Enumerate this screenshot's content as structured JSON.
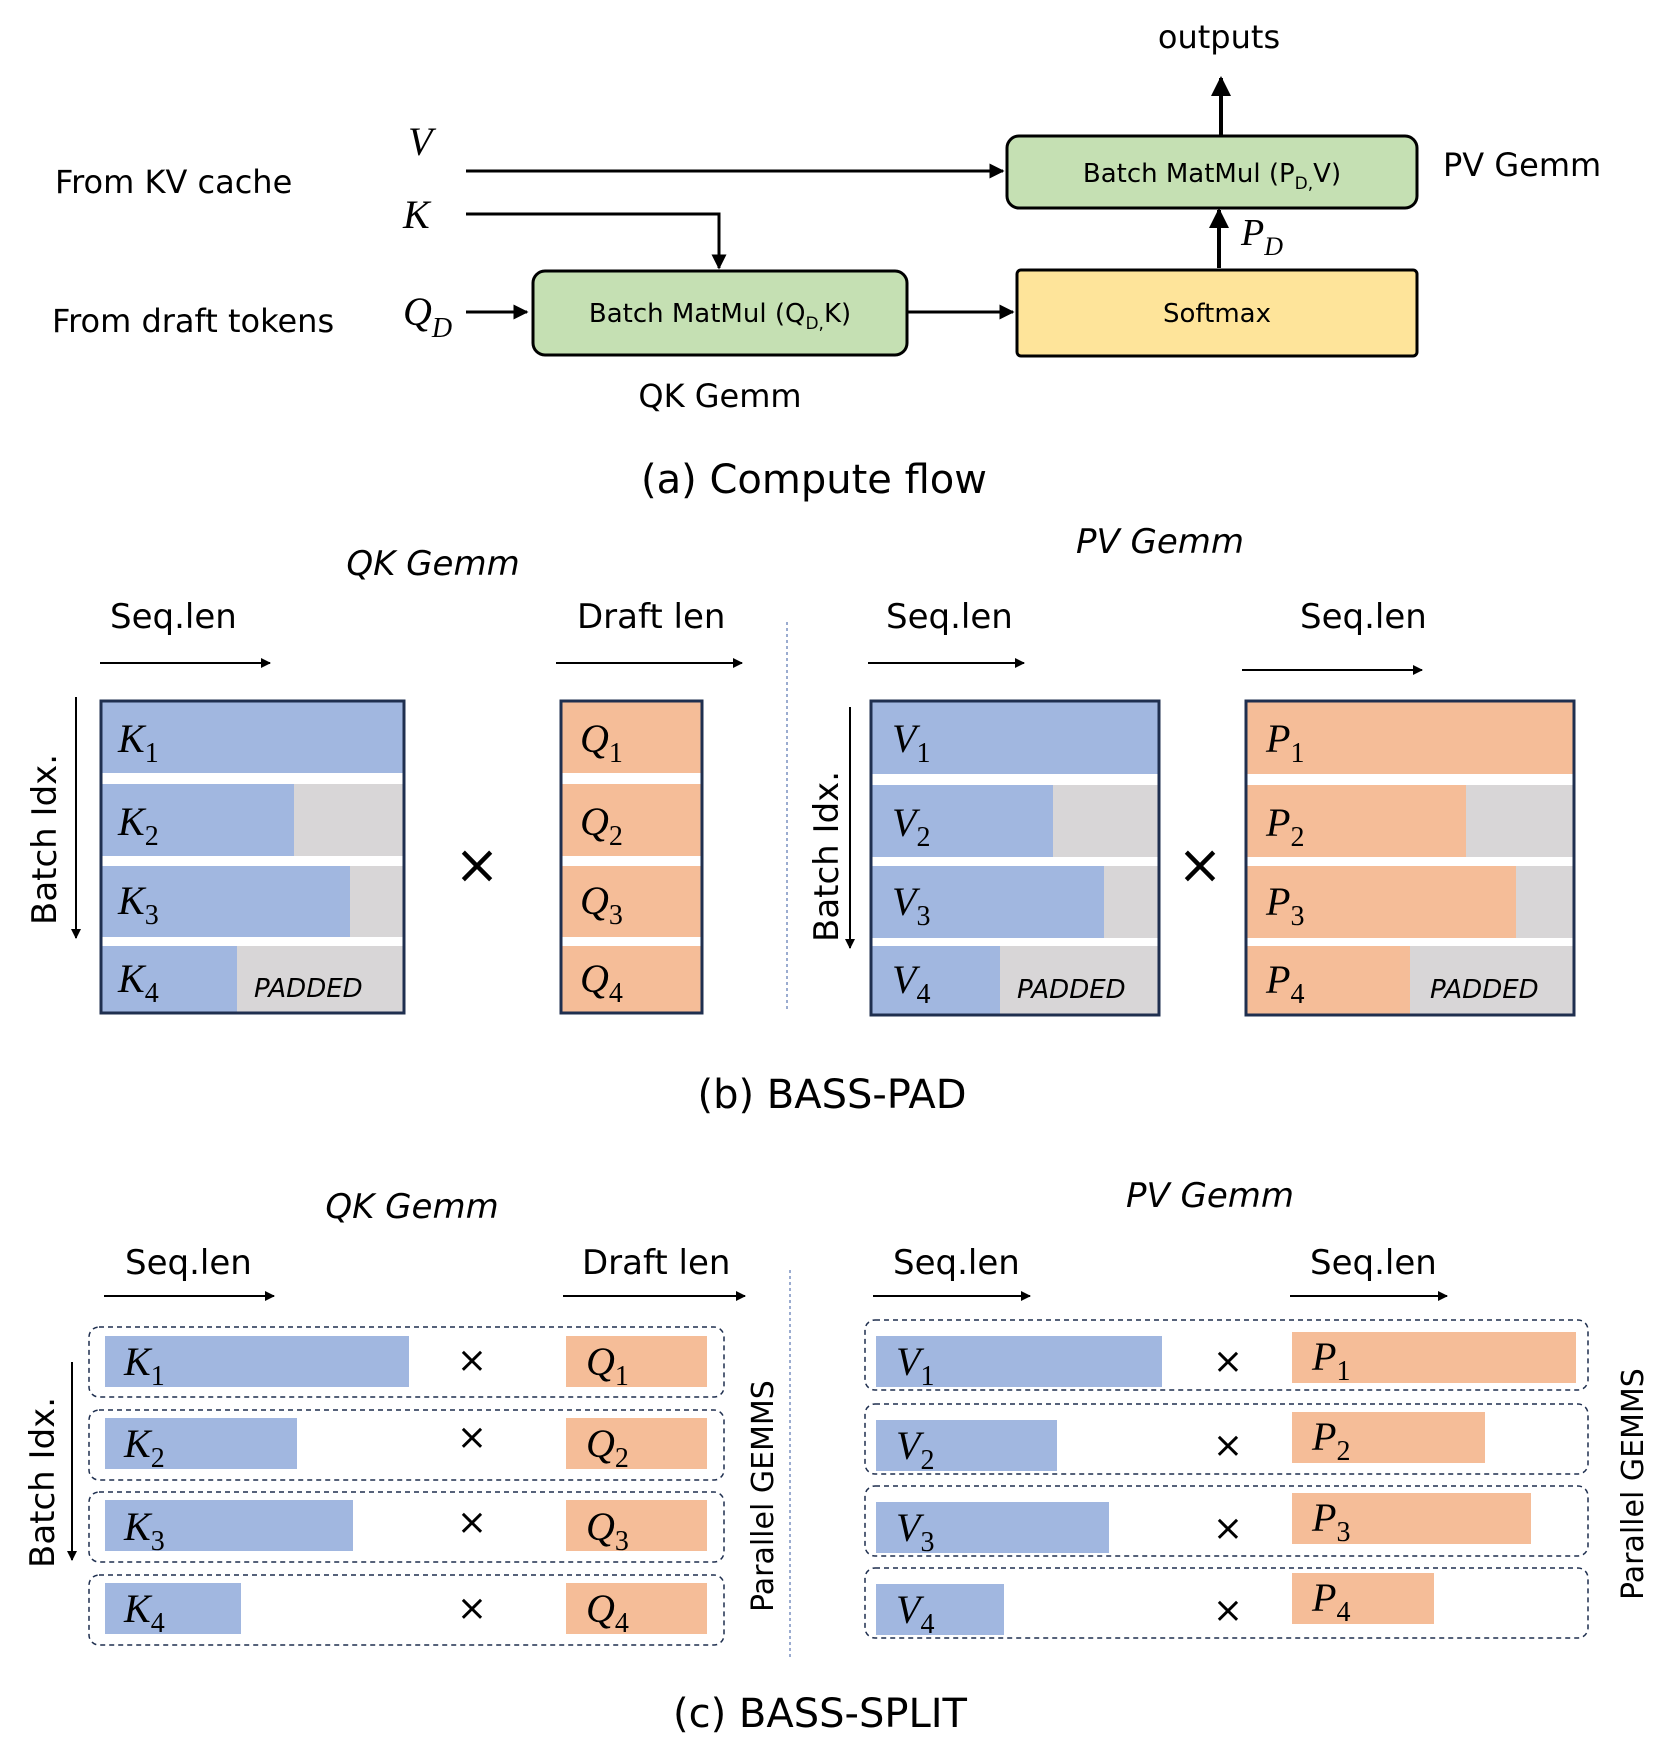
{
  "colors": {
    "blue": "#a1b7e0",
    "orange": "#f5bd98",
    "gray": "#d8d6d7",
    "green": "#c5e0b3",
    "yellow": "#fee49a",
    "border": "#1f2f4f"
  },
  "flow": {
    "outputs": "outputs",
    "from_kv": "From KV cache",
    "from_draft": "From draft tokens",
    "v_label": "V",
    "k_label": "K",
    "q_main": "Q",
    "q_sub": "D",
    "qk_box_main": "Batch MatMul (Q",
    "qk_box_sub": "D,",
    "qk_box_end": "K)",
    "pv_box_main": "Batch MatMul (P",
    "pv_box_sub": "D,",
    "pv_box_end": "V)",
    "softmax": "Softmax",
    "pd_main": "P",
    "pd_sub": "D",
    "pv_gemm": "PV Gemm",
    "qk_gemm": "QK Gemm",
    "caption": "(a) Compute flow"
  },
  "pad": {
    "qk_title": "QK Gemm",
    "pv_title": "PV Gemm",
    "seq_len": "Seq.len",
    "draft_len": "Draft len",
    "batch_idx": "Batch Idx.",
    "padded": "PADDED",
    "times": "×",
    "caption": "(b) BASS-PAD",
    "k": [
      "K",
      "K",
      "K",
      "K"
    ],
    "q": [
      "Q",
      "Q",
      "Q",
      "Q"
    ],
    "v": [
      "V",
      "V",
      "V",
      "V"
    ],
    "p": [
      "P",
      "P",
      "P",
      "P"
    ],
    "subs": [
      "1",
      "2",
      "3",
      "4"
    ]
  },
  "split": {
    "qk_title": "QK Gemm",
    "pv_title": "PV Gemm",
    "seq_len": "Seq.len",
    "draft_len": "Draft len",
    "batch_idx": "Batch Idx.",
    "parallel": "Parallel GEMMS",
    "times": "×",
    "caption": "(c) BASS-SPLIT",
    "k": [
      "K",
      "K",
      "K",
      "K"
    ],
    "q": [
      "Q",
      "Q",
      "Q",
      "Q"
    ],
    "v": [
      "V",
      "V",
      "V",
      "V"
    ],
    "p": [
      "P",
      "P",
      "P",
      "P"
    ],
    "subs": [
      "1",
      "2",
      "3",
      "4"
    ]
  }
}
